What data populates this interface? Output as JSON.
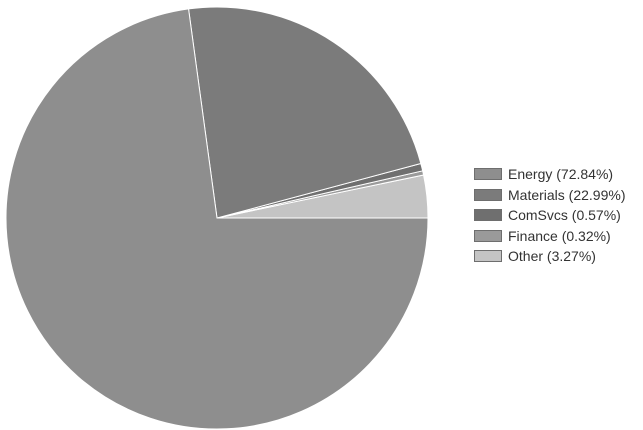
{
  "chart_data": {
    "type": "pie",
    "title": "",
    "legend_position": "right",
    "slices": [
      {
        "label": "Energy (72.84%)",
        "name": "Energy",
        "value": 72.84,
        "color": "#8e8e8e"
      },
      {
        "label": "Materials (22.99%)",
        "name": "Materials",
        "value": 22.99,
        "color": "#7b7b7b"
      },
      {
        "label": "ComSvcs (0.57%)",
        "name": "ComSvcs",
        "value": 0.57,
        "color": "#6f6f6f"
      },
      {
        "label": "Finance (0.32%)",
        "name": "Finance",
        "value": 0.32,
        "color": "#9a9a9a"
      },
      {
        "label": "Other (3.27%)",
        "name": "Other",
        "value": 3.27,
        "color": "#c4c4c4"
      }
    ]
  }
}
